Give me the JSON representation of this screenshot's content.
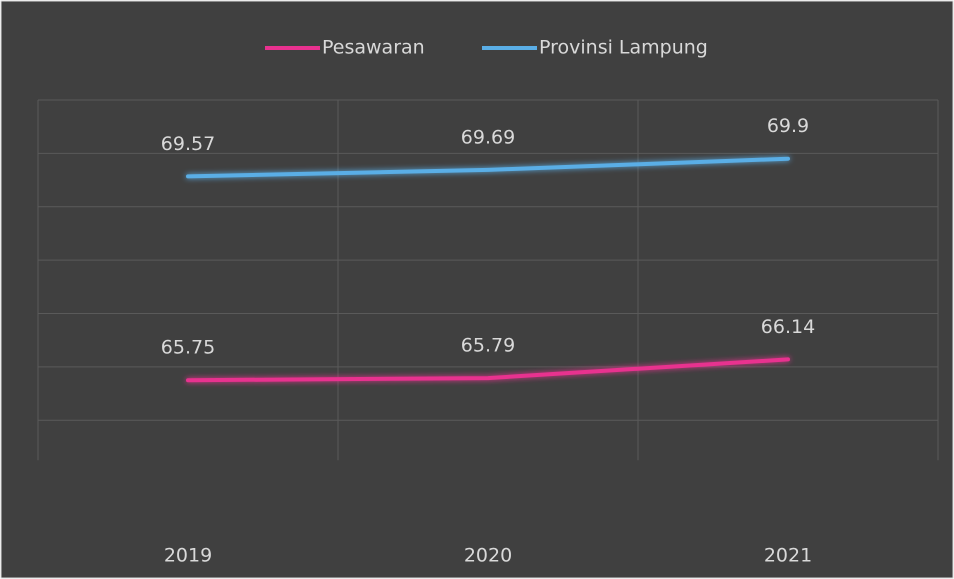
{
  "chart_data": {
    "type": "line",
    "categories": [
      "2019",
      "2020",
      "2021"
    ],
    "series": [
      {
        "name": "Pesawaran",
        "color": "#e8318f",
        "values": [
          65.75,
          65.79,
          66.14
        ]
      },
      {
        "name": "Provinsi Lampung",
        "color": "#5aaee6",
        "values": [
          69.57,
          69.69,
          69.9
        ]
      }
    ],
    "ylim": [
      63,
      71
    ],
    "yticks": [
      65,
      66,
      67,
      68,
      69,
      70,
      71
    ],
    "grid": true,
    "legend": "top"
  }
}
